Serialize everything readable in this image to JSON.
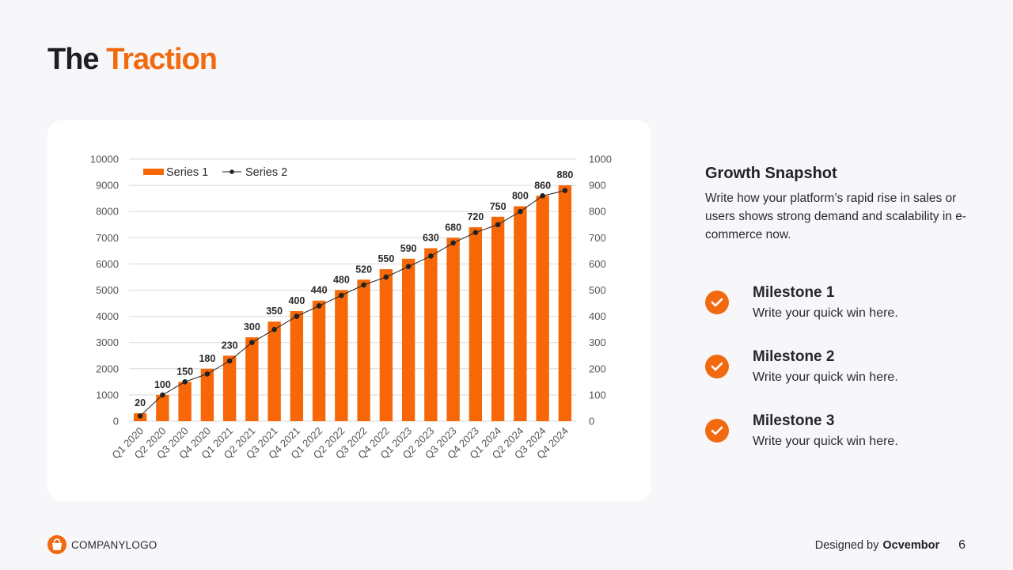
{
  "slide": {
    "title_part1": "The",
    "title_part2": "Traction",
    "page_number": "6"
  },
  "side_panel": {
    "heading": "Growth Snapshot",
    "body": "Write how your platform’s rapid rise in sales or users shows strong demand and scalability in e-commerce now.",
    "milestones": [
      {
        "title": "Milestone 1",
        "desc": "Write your quick win here.",
        "icon": "check-circle-icon"
      },
      {
        "title": "Milestone 2",
        "desc": "Write your quick win here.",
        "icon": "check-circle-icon"
      },
      {
        "title": "Milestone 3",
        "desc": "Write your quick win here.",
        "icon": "check-circle-icon"
      }
    ]
  },
  "footer": {
    "logo_text": "COMPANYLOGO",
    "logo_icon": "shopping-bag-icon",
    "designed_by_prefix": "Designed by",
    "designed_by_name": "Ocvembor"
  },
  "colors": {
    "accent": "#f26a10",
    "bar": "#f76707",
    "line": "#222222",
    "text_dark": "#1e1f24"
  },
  "chart_data": {
    "type": "bar",
    "title": "",
    "xlabel": "",
    "ylabel": "",
    "categories": [
      "Q1 2020",
      "Q2 2020",
      "Q3 2020",
      "Q4 2020",
      "Q1 2021",
      "Q2 2021",
      "Q3 2021",
      "Q4 2021",
      "Q1 2022",
      "Q2 2022",
      "Q3 2022",
      "Q4 2022",
      "Q1 2023",
      "Q2 2023",
      "Q3 2023",
      "Q4 2023",
      "Q1 2024",
      "Q2 2024",
      "Q3 2024",
      "Q4 2024"
    ],
    "series": [
      {
        "name": "Series 1",
        "type": "bar",
        "axis": "left",
        "values": [
          300,
          1000,
          1500,
          2000,
          2500,
          3200,
          3800,
          4200,
          4600,
          5000,
          5400,
          5800,
          6200,
          6600,
          7000,
          7400,
          7800,
          8200,
          8600,
          9000
        ]
      },
      {
        "name": "Series 2",
        "type": "line",
        "axis": "right",
        "markers": true,
        "data_labels": true,
        "values": [
          20,
          100,
          150,
          180,
          230,
          300,
          350,
          400,
          440,
          480,
          520,
          550,
          590,
          630,
          680,
          720,
          750,
          800,
          860,
          880
        ]
      }
    ],
    "ylim_left": [
      0,
      10000
    ],
    "yticks_left": [
      0,
      1000,
      2000,
      3000,
      4000,
      5000,
      6000,
      7000,
      8000,
      9000,
      10000
    ],
    "ylim_right": [
      0,
      1000
    ],
    "yticks_right": [
      0,
      100,
      200,
      300,
      400,
      500,
      600,
      700,
      800,
      900,
      1000
    ],
    "grid": true,
    "legend": "top-left",
    "x_tick_rotation": "diagonal"
  }
}
